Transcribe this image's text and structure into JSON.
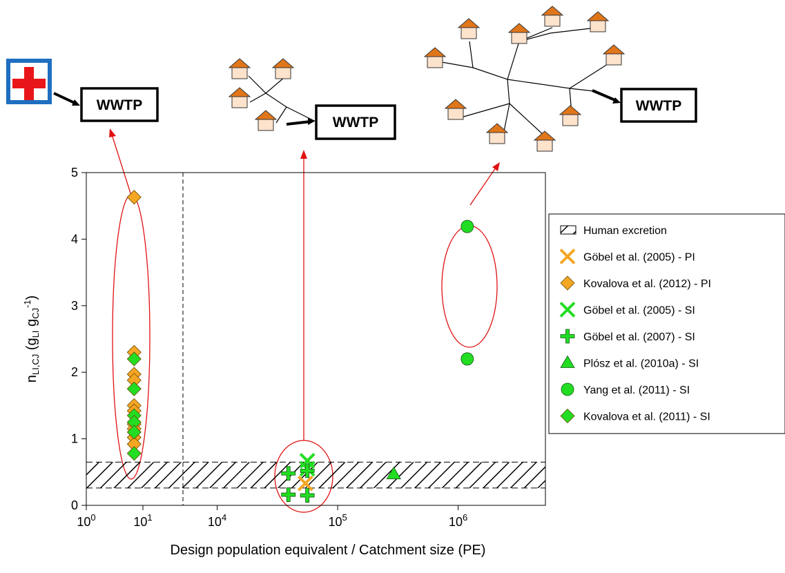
{
  "chart_data": {
    "type": "scatter",
    "xlabel": "Design population equivalent / Catchment size (PE)",
    "ylabel": [
      {
        "text": "n",
        "pos": "base"
      },
      {
        "text": "LI,CJ",
        "pos": "sub"
      },
      {
        "text": " (g",
        "pos": "base"
      },
      {
        "text": "LI",
        "pos": "sub"
      },
      {
        "text": " g",
        "pos": "base"
      },
      {
        "text": "CJ",
        "pos": "sub"
      },
      {
        "text": "-1",
        "pos": "sup"
      },
      {
        "text": ")",
        "pos": "base"
      }
    ],
    "xscale": "log",
    "xlim_segments": [
      [
        1,
        51
      ],
      [
        5200,
        5300000
      ]
    ],
    "xticks": [
      {
        "value": 1,
        "label": "10",
        "exponent": "0"
      },
      {
        "value": 10,
        "label": "10",
        "exponent": "1"
      },
      {
        "value": 10000,
        "label": "10",
        "exponent": "4"
      },
      {
        "value": 100000,
        "label": "10",
        "exponent": "5"
      },
      {
        "value": 1000000,
        "label": "10",
        "exponent": "6"
      }
    ],
    "ylim": [
      0,
      5
    ],
    "yticks": [
      0,
      1,
      2,
      3,
      4,
      5
    ],
    "band": {
      "name": "Human excretion",
      "values": [
        0.26,
        0.65
      ]
    },
    "series": [
      {
        "name": "Göbel et al. (2005) - PI",
        "marker": "x",
        "color": "#f5a623",
        "x": [
          54000
        ],
        "values": [
          0.33
        ]
      },
      {
        "name": "Kovalova et al. (2012) - PI",
        "marker": "diamond",
        "color": "#f5a623",
        "x": [
          7,
          7,
          7,
          7,
          7,
          7,
          7,
          7,
          7,
          7
        ],
        "values": [
          4.63,
          2.3,
          1.97,
          1.88,
          1.5,
          1.42,
          1.22,
          1.15,
          1.02,
          0.92
        ]
      },
      {
        "name": "Göbel et al. (2005) - SI",
        "marker": "x",
        "color": "#22dd22",
        "x": [
          56000,
          56000
        ],
        "values": [
          0.67,
          0.55
        ]
      },
      {
        "name": "Göbel et al. (2007) - SI",
        "marker": "plus",
        "color": "#22dd22",
        "x": [
          39000,
          39000,
          56000,
          56000
        ],
        "values": [
          0.48,
          0.16,
          0.15,
          0.52
        ]
      },
      {
        "name": "Plósz et al. (2010a) - SI",
        "marker": "triangle",
        "color": "#22dd22",
        "x": [
          292000
        ],
        "values": [
          0.47
        ]
      },
      {
        "name": "Yang et al. (2011) - SI",
        "marker": "circle",
        "color": "#22dd22",
        "x": [
          1190000,
          1190000
        ],
        "values": [
          4.19,
          2.2
        ]
      },
      {
        "name": "Kovalova et al. (2011) - SI",
        "marker": "diamond",
        "color": "#22dd22",
        "x": [
          7,
          7,
          7,
          7,
          7,
          7
        ],
        "values": [
          2.2,
          1.75,
          1.35,
          1.25,
          1.1,
          0.78
        ]
      }
    ]
  },
  "illustrations": {
    "labels": [
      "WWTP",
      "WWTP",
      "WWTP"
    ]
  }
}
